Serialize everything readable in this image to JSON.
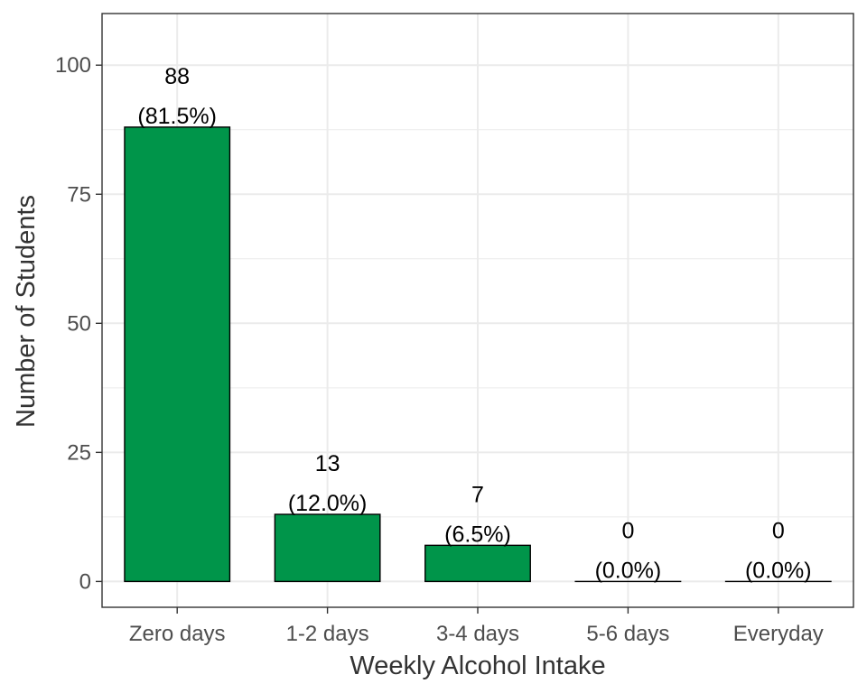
{
  "chart_data": {
    "type": "bar",
    "title": "",
    "xlabel": "Weekly Alcohol Intake",
    "ylabel": "Number of Students",
    "categories": [
      "Zero days",
      "1-2 days",
      "3-4 days",
      "5-6 days",
      "Everyday"
    ],
    "values": [
      88,
      13,
      7,
      0,
      0
    ],
    "value_labels": [
      "88",
      "13",
      "7",
      "0",
      "0"
    ],
    "percent_labels": [
      "(81.5%)",
      "(12.0%)",
      "(6.5%)",
      "(0.0%)",
      "(0.0%)"
    ],
    "ylim": [
      -5,
      110
    ],
    "yticks": [
      0,
      25,
      50,
      75,
      100
    ],
    "ytick_labels": [
      "0",
      "25",
      "50",
      "75",
      "100"
    ],
    "grid": true,
    "legend": "none",
    "colors": {
      "bar_fill": "#00954a",
      "bar_stroke": "#000000",
      "grid": "#ebebeb",
      "panel_border": "#333333"
    }
  }
}
